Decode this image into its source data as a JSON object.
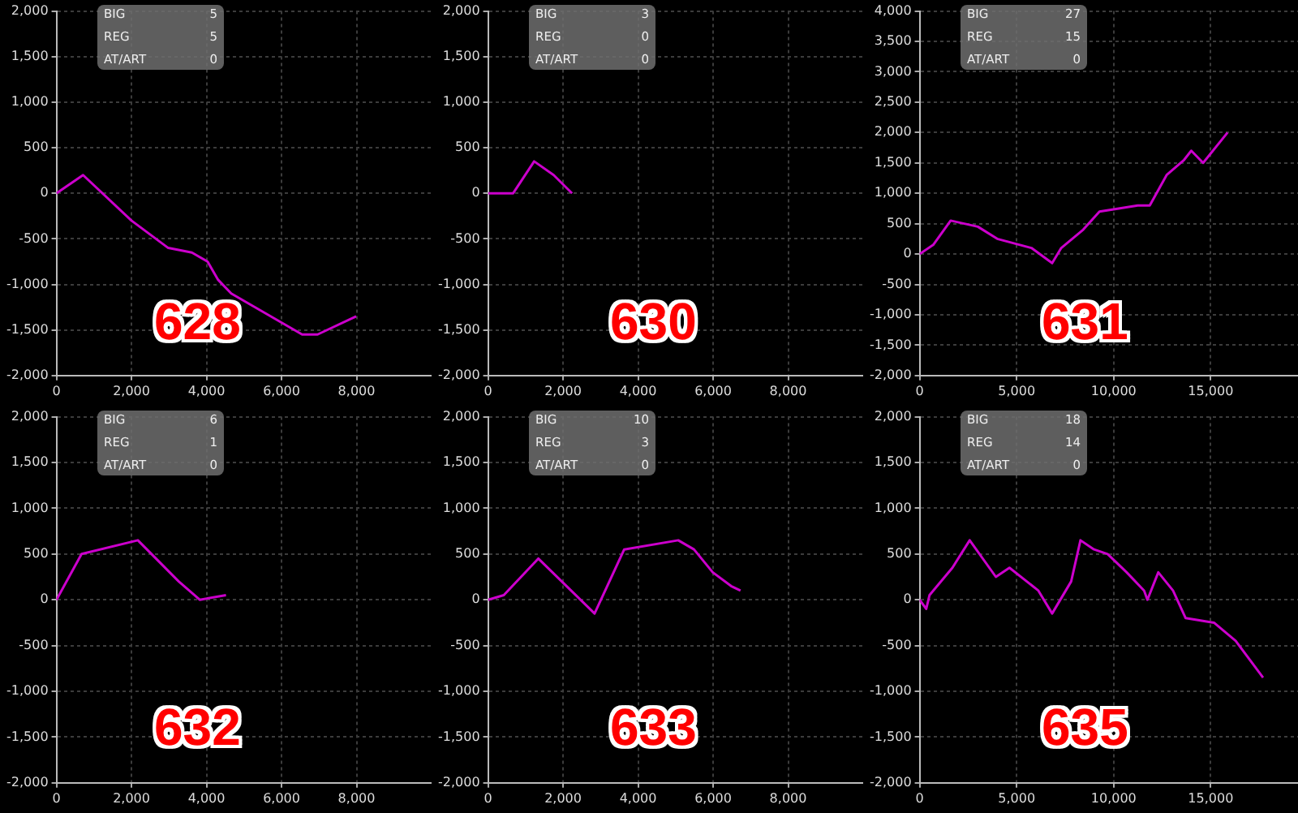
{
  "chart_data": [
    {
      "type": "line",
      "title": "628",
      "annotations": [
        "BIG",
        "5",
        "REG",
        "5",
        "AT/ART",
        "0"
      ],
      "color": "#cc00cc",
      "grid": true,
      "x": [
        0,
        710,
        2000,
        2980,
        3610,
        4030,
        4310,
        4660,
        6550,
        6960,
        7990
      ],
      "values": [
        0,
        200,
        -300,
        -600,
        -650,
        -750,
        -950,
        -1100,
        -1550,
        -1550,
        -1350
      ],
      "xlim": [
        0,
        10000
      ],
      "xticks": [
        {
          "value": 0,
          "label": "0"
        },
        {
          "value": 2000,
          "label": "2,000"
        },
        {
          "value": 4000,
          "label": "4,000"
        },
        {
          "value": 6000,
          "label": "6,000"
        },
        {
          "value": 8000,
          "label": "8,000"
        }
      ],
      "ylim": [
        -2000,
        2000
      ],
      "yticks": [
        {
          "value": -2000,
          "label": "-2,000"
        },
        {
          "value": -1500,
          "label": "-1,500"
        },
        {
          "value": -1000,
          "label": "-1,000"
        },
        -500,
        0,
        500,
        {
          "value": 1000,
          "label": "1,000"
        },
        {
          "value": 1500,
          "label": "1,500"
        },
        {
          "value": 2000,
          "label": "2,000"
        }
      ]
    },
    {
      "type": "line",
      "title": "630",
      "annotations": [
        "BIG",
        "3",
        "REG",
        "0",
        "AT/ART",
        "0"
      ],
      "color": "#cc00cc",
      "grid": true,
      "x": [
        0,
        670,
        1230,
        1750,
        2240
      ],
      "values": [
        0,
        0,
        350,
        200,
        0
      ],
      "xlim": [
        0,
        10000
      ],
      "xticks": [
        {
          "value": 0,
          "label": "0"
        },
        {
          "value": 2000,
          "label": "2,000"
        },
        {
          "value": 4000,
          "label": "4,000"
        },
        {
          "value": 6000,
          "label": "6,000"
        },
        {
          "value": 8000,
          "label": "8,000"
        }
      ],
      "ylim": [
        -2000,
        2000
      ],
      "yticks": [
        {
          "value": -2000,
          "label": "-2,000"
        },
        {
          "value": -1500,
          "label": "-1,500"
        },
        {
          "value": -1000,
          "label": "-1,000"
        },
        -500,
        0,
        500,
        {
          "value": 1000,
          "label": "1,000"
        },
        {
          "value": 1500,
          "label": "1,500"
        },
        {
          "value": 2000,
          "label": "2,000"
        }
      ]
    },
    {
      "type": "line",
      "title": "631",
      "annotations": [
        "BIG",
        "27",
        "REG",
        "15",
        "AT/ART",
        "0"
      ],
      "color": "#cc00cc",
      "grid": true,
      "x": [
        0,
        700,
        1600,
        3000,
        4000,
        5760,
        6830,
        7300,
        8430,
        9270,
        10260,
        11240,
        11860,
        12730,
        13630,
        14000,
        14610,
        15870
      ],
      "values": [
        0,
        150,
        550,
        450,
        250,
        100,
        -150,
        100,
        400,
        700,
        750,
        800,
        800,
        1300,
        1550,
        1700,
        1500,
        2000
      ],
      "xlim": [
        0,
        19500
      ],
      "xticks": [
        {
          "value": 0,
          "label": "0"
        },
        {
          "value": 5000,
          "label": "5,000"
        },
        {
          "value": 10000,
          "label": "10,000"
        },
        {
          "value": 15000,
          "label": "15,000"
        }
      ],
      "ylim": [
        -2000,
        4000
      ],
      "yticks": [
        {
          "value": -2000,
          "label": "-2,000"
        },
        {
          "value": -1500,
          "label": "-1,500"
        },
        {
          "value": -1000,
          "label": "-1,000"
        },
        -500,
        0,
        500,
        {
          "value": 1000,
          "label": "1,000"
        },
        {
          "value": 1500,
          "label": "1,500"
        },
        {
          "value": 2000,
          "label": "2,000"
        },
        {
          "value": 2500,
          "label": "2,500"
        },
        {
          "value": 3000,
          "label": "3,000"
        },
        {
          "value": 3500,
          "label": "3,500"
        },
        {
          "value": 4000,
          "label": "4,000"
        }
      ]
    },
    {
      "type": "line",
      "title": "632",
      "annotations": [
        "BIG",
        "6",
        "REG",
        "1",
        "AT/ART",
        "0"
      ],
      "color": "#cc00cc",
      "grid": true,
      "x": [
        0,
        670,
        2170,
        3260,
        3820,
        4520
      ],
      "values": [
        0,
        500,
        650,
        200,
        0,
        50
      ],
      "xlim": [
        0,
        10000
      ],
      "xticks": [
        {
          "value": 0,
          "label": "0"
        },
        {
          "value": 2000,
          "label": "2,000"
        },
        {
          "value": 4000,
          "label": "4,000"
        },
        {
          "value": 6000,
          "label": "6,000"
        },
        {
          "value": 8000,
          "label": "8,000"
        }
      ],
      "ylim": [
        -2000,
        2000
      ],
      "yticks": [
        {
          "value": -2000,
          "label": "-2,000"
        },
        {
          "value": -1500,
          "label": "-1,500"
        },
        {
          "value": -1000,
          "label": "-1,000"
        },
        -500,
        0,
        500,
        {
          "value": 1000,
          "label": "1,000"
        },
        {
          "value": 1500,
          "label": "1,500"
        },
        {
          "value": 2000,
          "label": "2,000"
        }
      ]
    },
    {
      "type": "line",
      "title": "633",
      "annotations": [
        "BIG",
        "10",
        "REG",
        "3",
        "AT/ART",
        "0"
      ],
      "color": "#cc00cc",
      "grid": true,
      "x": [
        0,
        420,
        1340,
        2840,
        3630,
        5070,
        5490,
        5990,
        6480,
        6730
      ],
      "values": [
        0,
        50,
        450,
        -150,
        550,
        650,
        550,
        300,
        150,
        100
      ],
      "xlim": [
        0,
        10000
      ],
      "xticks": [
        {
          "value": 0,
          "label": "0"
        },
        {
          "value": 2000,
          "label": "2,000"
        },
        {
          "value": 4000,
          "label": "4,000"
        },
        {
          "value": 6000,
          "label": "6,000"
        },
        {
          "value": 8000,
          "label": "8,000"
        }
      ],
      "ylim": [
        -2000,
        2000
      ],
      "yticks": [
        {
          "value": -2000,
          "label": "-2,000"
        },
        {
          "value": -1500,
          "label": "-1,500"
        },
        {
          "value": -1000,
          "label": "-1,000"
        },
        -500,
        0,
        500,
        {
          "value": 1000,
          "label": "1,000"
        },
        {
          "value": 1500,
          "label": "1,500"
        },
        {
          "value": 2000,
          "label": "2,000"
        }
      ]
    },
    {
      "type": "line",
      "title": "635",
      "annotations": [
        "BIG",
        "18",
        "REG",
        "14",
        "AT/ART",
        "0"
      ],
      "color": "#cc00cc",
      "grid": true,
      "x": [
        0,
        340,
        510,
        1690,
        2580,
        3930,
        4630,
        6120,
        6830,
        7810,
        8290,
        8990,
        9690,
        10670,
        11570,
        11740,
        12300,
        13060,
        13710,
        15170,
        16290,
        17700
      ],
      "values": [
        0,
        -100,
        50,
        350,
        650,
        250,
        350,
        100,
        -150,
        200,
        650,
        550,
        500,
        300,
        100,
        0,
        300,
        100,
        -200,
        -250,
        -450,
        -850
      ],
      "xlim": [
        0,
        19500
      ],
      "xticks": [
        {
          "value": 0,
          "label": "0"
        },
        {
          "value": 5000,
          "label": "5,000"
        },
        {
          "value": 10000,
          "label": "10,000"
        },
        {
          "value": 15000,
          "label": "15,000"
        }
      ],
      "ylim": [
        -2000,
        2000
      ],
      "yticks": [
        {
          "value": -2000,
          "label": "-2,000"
        },
        {
          "value": -1500,
          "label": "-1,500"
        },
        {
          "value": -1000,
          "label": "-1,000"
        },
        -500,
        0,
        500,
        {
          "value": 1000,
          "label": "1,000"
        },
        {
          "value": 1500,
          "label": "1,500"
        },
        {
          "value": 2000,
          "label": "2,000"
        }
      ]
    }
  ]
}
